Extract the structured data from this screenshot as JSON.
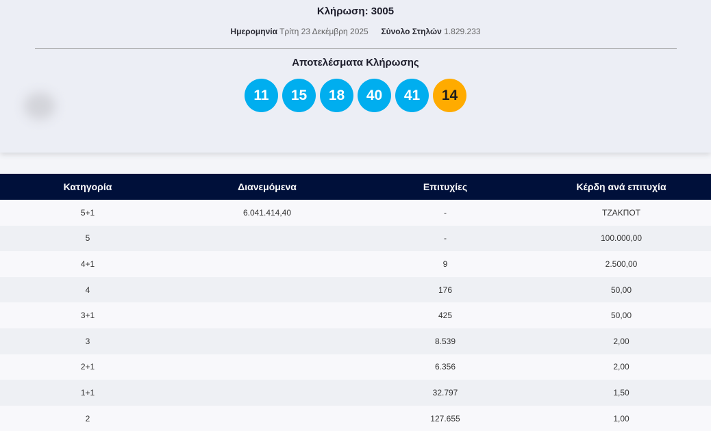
{
  "draw": {
    "title": "Κλήρωση: 3005",
    "date_label": "Ημερομηνία",
    "date_value": "Τρίτη 23 Δεκέμβρη 2025",
    "columns_label": "Σύνολο Στηλών",
    "columns_value": "1.829.233",
    "results_title": "Αποτελέσματα Κλήρωσης",
    "numbers": [
      "11",
      "15",
      "18",
      "40",
      "41"
    ],
    "bonus": "14",
    "colors": {
      "ball": "#00aeef",
      "bonus": "#ffab00",
      "header": "#00103a"
    }
  },
  "table": {
    "headers": [
      "Κατηγορία",
      "Διανεμόμενα",
      "Επιτυχίες",
      "Κέρδη ανά επιτυχία"
    ],
    "rows": [
      [
        "5+1",
        "6.041.414,40",
        "-",
        "ΤΖΑΚΠΟΤ"
      ],
      [
        "5",
        "",
        "-",
        "100.000,00"
      ],
      [
        "4+1",
        "",
        "9",
        "2.500,00"
      ],
      [
        "4",
        "",
        "176",
        "50,00"
      ],
      [
        "3+1",
        "",
        "425",
        "50,00"
      ],
      [
        "3",
        "",
        "8.539",
        "2,00"
      ],
      [
        "2+1",
        "",
        "6.356",
        "2,00"
      ],
      [
        "1+1",
        "",
        "32.797",
        "1,50"
      ],
      [
        "2",
        "",
        "127.655",
        "1,00"
      ]
    ]
  }
}
